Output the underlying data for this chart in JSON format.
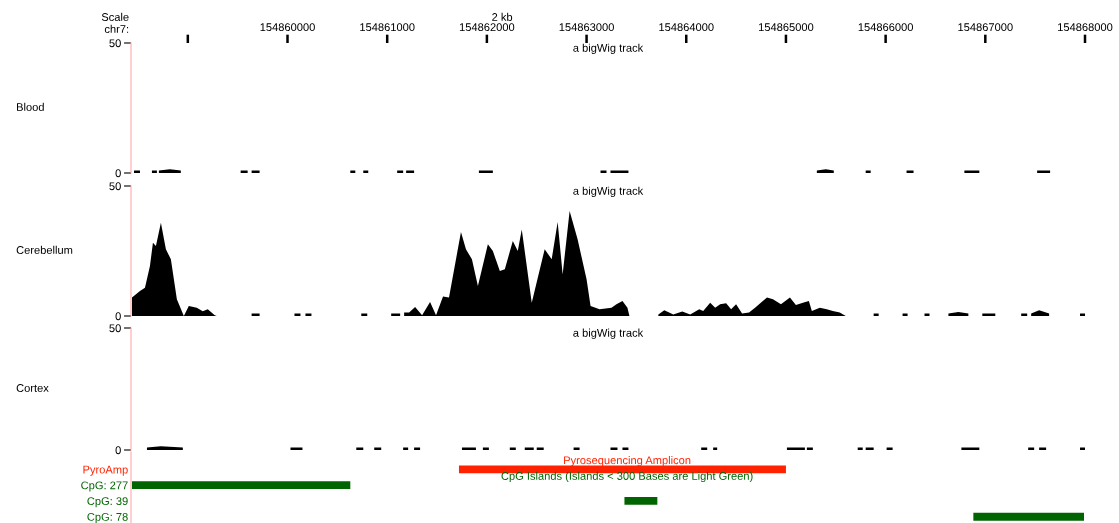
{
  "chart_data": [
    {
      "type": "area",
      "title": "a bigWig track",
      "ylabel": "Blood",
      "xlabel": "chr7:",
      "annotations": [
        "Scale",
        "2 kb"
      ],
      "color": "#000000",
      "x": [
        154858460,
        154858520,
        154858520,
        154858640,
        154858640,
        154858690,
        154858690,
        154858710,
        154858710,
        154858820,
        154858930,
        154858930,
        154859530,
        154859530,
        154859600,
        154859600,
        154859640,
        154859640,
        154859720,
        154859720,
        154860630,
        154860630,
        154860680,
        154860680,
        154860760,
        154860760,
        154860810,
        154860810,
        154861100,
        154861100,
        154861160,
        154861160,
        154861190,
        154861190,
        154861270,
        154861270,
        154861920,
        154861920,
        154862060,
        154862060,
        154863140,
        154863140,
        154863200,
        154863200,
        154863240,
        154863240,
        154863420,
        154863420,
        154865310,
        154865310,
        154865400,
        154865480,
        154865480,
        154865800,
        154865800,
        154865850,
        154865850,
        154866210,
        154866210,
        154866280,
        154866280,
        154866790,
        154866790,
        154866940,
        154866940,
        154867520,
        154867520,
        154867650
      ],
      "values": [
        1,
        1,
        0,
        0,
        1,
        1,
        0,
        0,
        1,
        1.4,
        1,
        0,
        0,
        1,
        1,
        0,
        0,
        1,
        1,
        0,
        0,
        1,
        1,
        0,
        0,
        1,
        1,
        0,
        0,
        1,
        1,
        0,
        0,
        1,
        1,
        0,
        0,
        1,
        1,
        0,
        0,
        1,
        1,
        0,
        0,
        1,
        1,
        0,
        0,
        1,
        1.4,
        1,
        0,
        0,
        1,
        1,
        0,
        0,
        1,
        1,
        0,
        0,
        1,
        1,
        0,
        0,
        1,
        1
      ],
      "xlim": [
        154858430,
        154868000
      ],
      "xticks": [
        {
          "value": 154859000,
          "label": null
        },
        154860000,
        154861000,
        154862000,
        154863000,
        154864000,
        154865000,
        154866000,
        154867000,
        154868000
      ],
      "ylim": [
        0,
        50
      ],
      "yticks": [
        0,
        50
      ]
    },
    {
      "type": "area",
      "title": "a bigWig track",
      "ylabel": "Cerebellum",
      "color": "#000000",
      "tick_labels": "y",
      "x": [
        154858440,
        154858520,
        154858570,
        154858620,
        154858650,
        154858680,
        154858730,
        154858780,
        154858830,
        154858890,
        154858960,
        154859010,
        154859090,
        154859150,
        154859200,
        154859270,
        154859290,
        154859640,
        154859640,
        154859720,
        154859720,
        154860070,
        154860070,
        154860130,
        154860130,
        154860180,
        154860180,
        154860240,
        154860240,
        154860740,
        154860740,
        154860800,
        154860800,
        154861040,
        154861040,
        154861130,
        154861130,
        154861170,
        154861170,
        154861220,
        154861280,
        154861350,
        154861430,
        154861490,
        154861560,
        154861620,
        154861740,
        154861790,
        154861850,
        154861910,
        154862010,
        154862060,
        154862130,
        154862180,
        154862260,
        154862310,
        154862350,
        154862450,
        154862580,
        154862650,
        154862710,
        154862760,
        154862830,
        154862910,
        154863000,
        154863040,
        154863130,
        154863250,
        154863300,
        154863360,
        154863410,
        154863430,
        154863720,
        154863720,
        154863780,
        154863870,
        154863960,
        154864040,
        154864130,
        154864170,
        154864240,
        154864290,
        154864340,
        154864400,
        154864450,
        154864500,
        154864560,
        154864630,
        154864690,
        154864810,
        154864870,
        154864950,
        154865040,
        154865100,
        154865170,
        154865230,
        154865260,
        154865340,
        154865410,
        154865470,
        154865540,
        154865600,
        154865880,
        154865880,
        154865930,
        154865930,
        154866170,
        154866170,
        154866220,
        154866220,
        154866390,
        154866390,
        154866440,
        154866440,
        154866630,
        154866630,
        154866730,
        154866830,
        154866830,
        154866970,
        154866970,
        154867100,
        154867100,
        154867360,
        154867360,
        154867420,
        154867420,
        154867460,
        154867460,
        154867540,
        154867640,
        154867640,
        154867950,
        154867950,
        154868000
      ],
      "values": [
        7.1,
        9.6,
        10.9,
        19.2,
        28.2,
        26.9,
        35.9,
        25.7,
        21.8,
        6.4,
        0,
        3.8,
        3.2,
        1.8,
        2.6,
        0.3,
        0,
        0,
        1,
        1,
        0,
        0,
        1,
        1,
        0,
        0,
        1,
        1,
        0,
        0,
        1,
        1,
        0,
        0,
        1,
        1,
        0,
        0,
        1.3,
        1.3,
        3.5,
        0.3,
        5.4,
        0.3,
        7.5,
        7.1,
        32.3,
        25.7,
        21.8,
        11.5,
        27.6,
        25,
        17.3,
        18,
        28.8,
        25,
        33.3,
        5.1,
        25.7,
        21.8,
        36.2,
        16,
        40.4,
        29.5,
        14.1,
        3.8,
        2.6,
        3.2,
        4.5,
        5.8,
        3.2,
        0,
        0,
        0.6,
        2.2,
        0.6,
        1.7,
        0.6,
        2.6,
        1.9,
        5.1,
        3.2,
        4.5,
        4.9,
        2.6,
        4.5,
        1.0,
        1.3,
        3.2,
        7.1,
        6.4,
        4.5,
        7.1,
        4.2,
        5.1,
        5.8,
        1.9,
        3.2,
        2.6,
        1.9,
        1.3,
        0,
        0,
        1,
        1,
        0,
        0,
        1,
        1,
        0,
        0,
        1,
        1,
        0,
        0,
        1,
        1.5,
        1,
        0,
        0,
        1,
        1,
        0,
        0,
        1,
        1,
        0,
        0,
        1,
        2.2,
        1,
        0,
        0,
        1,
        1
      ],
      "xlim": [
        154858430,
        154868000
      ],
      "ylim": [
        0,
        50
      ],
      "yticks": [
        0,
        50
      ]
    },
    {
      "type": "area",
      "title": "a bigWig track",
      "ylabel": "Cortex",
      "color": "#000000",
      "tick_labels": "y",
      "x": [
        154858590,
        154858730,
        154858950,
        154858950,
        154860030,
        154860030,
        154860150,
        154860150,
        154860690,
        154860690,
        154860760,
        154860760,
        154860870,
        154860870,
        154860940,
        154860940,
        154861160,
        154861160,
        154861210,
        154861210,
        154861270,
        154861270,
        154861330,
        154861330,
        154861750,
        154861750,
        154861890,
        154861890,
        154861960,
        154861960,
        154862020,
        154862020,
        154862230,
        154862230,
        154862290,
        154862290,
        154862380,
        154862380,
        154862470,
        154862470,
        154862500,
        154862500,
        154862570,
        154862570,
        154862870,
        154862870,
        154862930,
        154862930,
        154863240,
        154863240,
        154863310,
        154863310,
        154863360,
        154863360,
        154863420,
        154863420,
        154864150,
        154864150,
        154864210,
        154864210,
        154864270,
        154864270,
        154864310,
        154864310,
        154865010,
        154865010,
        154865190,
        154865190,
        154865210,
        154865210,
        154865270,
        154865270,
        154865720,
        154865720,
        154865770,
        154865770,
        154865800,
        154865800,
        154865880,
        154865880,
        154866010,
        154866010,
        154866070,
        154866070,
        154866760,
        154866760,
        154866940,
        154866940,
        154867430,
        154867430,
        154867490,
        154867490,
        154867540,
        154867540,
        154867610,
        154867610,
        154867950,
        154867950,
        154868000
      ],
      "values": [
        1,
        1.5,
        1,
        0,
        0,
        1,
        1,
        0,
        0,
        1,
        1,
        0,
        0,
        1,
        1,
        0,
        0,
        1,
        1,
        0,
        0,
        1,
        1,
        0,
        0,
        1,
        1,
        0,
        0,
        1,
        1,
        0,
        0,
        1,
        1,
        0,
        0,
        1,
        1,
        0,
        0,
        1,
        1,
        0,
        0,
        1,
        1,
        0,
        0,
        1,
        1,
        0,
        0,
        1,
        1,
        0,
        0,
        1,
        1,
        0,
        0,
        1,
        1,
        0,
        0,
        1,
        1,
        0,
        0,
        1,
        1,
        0,
        0,
        1,
        1,
        0,
        0,
        1,
        1,
        0,
        0,
        1,
        1,
        0,
        0,
        1,
        1,
        0,
        0,
        1,
        1,
        0,
        0,
        1,
        1,
        0,
        0,
        1,
        1
      ],
      "xlim": [
        154858430,
        154868000
      ],
      "ylim": [
        0,
        50
      ],
      "yticks": [
        0,
        50
      ]
    },
    {
      "type": "bar",
      "orientation": "horizontal",
      "tick_labels": "y",
      "categories": [
        "PyroAmp",
        "CpG: 277",
        "CpG: 39",
        "CpG: 78"
      ],
      "base": [
        154861720,
        154858440,
        154863380,
        154866880
      ],
      "values": [
        3280,
        2190,
        330,
        1110
      ],
      "colors": [
        "#ff2200",
        "#006400",
        "#006400",
        "#006400"
      ],
      "annotations": [
        "Pyrosequencing Amplicon",
        "CpG Islands (Islands < 300 Bases are Light Green)"
      ],
      "xlim": [
        154858430,
        154868000
      ]
    }
  ]
}
